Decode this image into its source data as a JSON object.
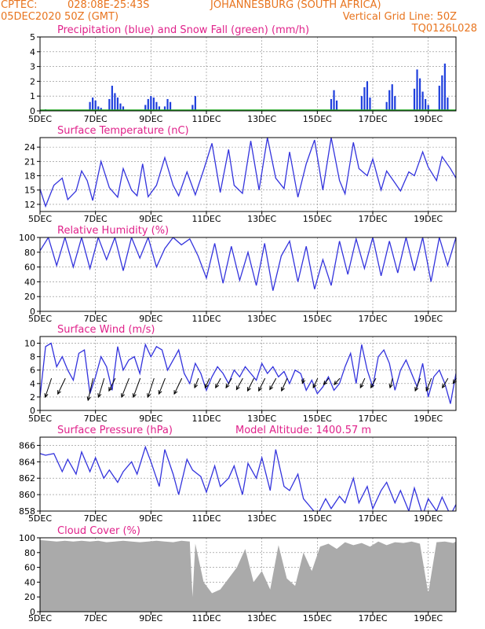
{
  "header": {
    "source": "CPTEC:",
    "coords": "028:08E-25:43S",
    "location": "JOHANNESBURG (SOUTH AFRICA)",
    "run": "05DEC2020 50Z (GMT)",
    "grid_note": "Vertical Grid Line: 50Z",
    "code": "TQ0126L028",
    "color": "#e8741e"
  },
  "colors": {
    "title": "#e0218a",
    "line": "#3333dd",
    "precip": "#1f3fdd",
    "snow": "#22aa22",
    "cloud": "#aaaaaa",
    "arrow": "#000000"
  },
  "x_ticks": [
    "5DEC",
    "7DEC",
    "9DEC",
    "11DEC",
    "13DEC",
    "15DEC",
    "17DEC",
    "19DEC"
  ],
  "chart_data": [
    {
      "id": "precip",
      "type": "bar",
      "title": "Precipitation (blue) and Snow Fall (green) (mm/h)",
      "ylim": [
        0,
        5
      ],
      "yticks": [
        0,
        1,
        2,
        3,
        4,
        5
      ],
      "x": [
        5.2,
        6.8,
        6.9,
        7.0,
        7.1,
        7.2,
        7.5,
        7.6,
        7.7,
        7.8,
        7.9,
        8.0,
        8.8,
        8.9,
        9.0,
        9.1,
        9.2,
        9.3,
        9.5,
        9.6,
        9.7,
        10.5,
        10.6,
        15.5,
        15.6,
        15.7,
        16.6,
        16.7,
        16.8,
        16.9,
        17.5,
        17.6,
        17.7,
        17.8,
        18.5,
        18.6,
        18.7,
        18.8,
        18.9,
        19.0,
        19.4,
        19.5,
        19.6,
        19.7
      ],
      "series": [
        {
          "values": [
            0.1,
            0.6,
            0.9,
            0.7,
            0.3,
            0.2,
            0.8,
            1.7,
            1.2,
            0.9,
            0.5,
            0.3,
            0.4,
            0.8,
            1.0,
            0.9,
            0.6,
            0.3,
            0.3,
            0.8,
            0.6,
            0.4,
            1.0,
            0.8,
            1.4,
            0.7,
            1.0,
            1.6,
            2.0,
            0.9,
            0.6,
            1.4,
            1.8,
            1.0,
            1.5,
            2.8,
            2.2,
            1.3,
            0.8,
            0.4,
            1.7,
            2.4,
            3.2,
            0.9
          ]
        }
      ]
    },
    {
      "id": "temp",
      "type": "line",
      "title": "Surface Temperature (nC)",
      "ylim": [
        10.5,
        26
      ],
      "yticks": [
        12,
        15,
        18,
        21,
        24
      ],
      "x": [
        5.0,
        5.2,
        5.5,
        5.8,
        6.0,
        6.3,
        6.5,
        6.7,
        6.9,
        7.2,
        7.5,
        7.8,
        8.0,
        8.3,
        8.5,
        8.7,
        8.9,
        9.2,
        9.5,
        9.8,
        10.0,
        10.3,
        10.6,
        10.9,
        11.2,
        11.5,
        11.8,
        12.0,
        12.3,
        12.6,
        12.9,
        13.2,
        13.5,
        13.8,
        14.0,
        14.3,
        14.6,
        14.9,
        15.2,
        15.5,
        15.8,
        16.0,
        16.3,
        16.5,
        16.8,
        17.0,
        17.3,
        17.5,
        17.8,
        18.0,
        18.3,
        18.5,
        18.8,
        19.0,
        19.3,
        19.5,
        19.8,
        20.0
      ],
      "series": [
        {
          "values": [
            15.2,
            11.6,
            16.0,
            17.5,
            13.0,
            14.8,
            19.0,
            17.0,
            12.8,
            21.0,
            15.5,
            13.5,
            19.5,
            15.0,
            13.8,
            20.5,
            13.6,
            16.0,
            21.8,
            16.0,
            13.8,
            18.8,
            14.0,
            19.2,
            24.8,
            14.5,
            23.5,
            16.0,
            14.3,
            25.3,
            15.0,
            26.0,
            17.5,
            15.3,
            23.0,
            13.5,
            20.5,
            25.5,
            15.0,
            26.0,
            17.0,
            14.2,
            25.0,
            19.5,
            18.0,
            21.5,
            15.0,
            19.0,
            16.5,
            14.8,
            18.8,
            18.0,
            23.0,
            19.8,
            17.0,
            22.0,
            19.5,
            17.5
          ]
        }
      ]
    },
    {
      "id": "rh",
      "type": "line",
      "title": "Relative Humidity (%)",
      "ylim": [
        0,
        100
      ],
      "yticks": [
        0,
        20,
        40,
        60,
        80,
        100
      ],
      "x": [
        5.0,
        5.3,
        5.6,
        5.9,
        6.2,
        6.5,
        6.8,
        7.1,
        7.4,
        7.7,
        8.0,
        8.3,
        8.6,
        8.9,
        9.2,
        9.5,
        9.8,
        10.1,
        10.4,
        10.7,
        11.0,
        11.3,
        11.6,
        11.9,
        12.2,
        12.5,
        12.8,
        13.1,
        13.4,
        13.7,
        14.0,
        14.3,
        14.6,
        14.9,
        15.2,
        15.5,
        15.8,
        16.1,
        16.4,
        16.7,
        17.0,
        17.3,
        17.6,
        17.9,
        18.2,
        18.5,
        18.8,
        19.1,
        19.4,
        19.7,
        20.0
      ],
      "series": [
        {
          "values": [
            82,
            100,
            62,
            100,
            60,
            100,
            58,
            100,
            70,
            100,
            55,
            100,
            72,
            100,
            60,
            85,
            100,
            90,
            98,
            75,
            45,
            92,
            38,
            88,
            42,
            80,
            35,
            92,
            28,
            75,
            95,
            40,
            88,
            30,
            70,
            35,
            95,
            50,
            98,
            58,
            100,
            48,
            95,
            52,
            100,
            55,
            100,
            40,
            100,
            62,
            100
          ]
        }
      ]
    },
    {
      "id": "wind",
      "type": "line",
      "title": "Surface Wind (m/s)",
      "ylim": [
        0,
        11
      ],
      "yticks": [
        0,
        2,
        4,
        6,
        8,
        10
      ],
      "x": [
        5.0,
        5.2,
        5.4,
        5.6,
        5.8,
        6.0,
        6.2,
        6.4,
        6.6,
        6.8,
        7.0,
        7.2,
        7.4,
        7.6,
        7.8,
        8.0,
        8.2,
        8.4,
        8.6,
        8.8,
        9.0,
        9.2,
        9.4,
        9.6,
        9.8,
        10.0,
        10.2,
        10.4,
        10.6,
        10.8,
        11.0,
        11.2,
        11.4,
        11.6,
        11.8,
        12.0,
        12.2,
        12.4,
        12.6,
        12.8,
        13.0,
        13.2,
        13.4,
        13.6,
        13.8,
        14.0,
        14.2,
        14.4,
        14.6,
        14.8,
        15.0,
        15.2,
        15.4,
        15.6,
        15.8,
        16.0,
        16.2,
        16.4,
        16.6,
        16.8,
        17.0,
        17.2,
        17.4,
        17.6,
        17.8,
        18.0,
        18.2,
        18.4,
        18.6,
        18.8,
        19.0,
        19.2,
        19.4,
        19.6,
        19.8,
        20.0
      ],
      "series": [
        {
          "values": [
            2.0,
            9.5,
            10.0,
            6.5,
            8.0,
            6.0,
            4.5,
            8.5,
            9.0,
            2.5,
            5.0,
            8.0,
            6.5,
            3.0,
            9.5,
            6.0,
            7.5,
            8.0,
            5.5,
            9.8,
            8.0,
            9.5,
            9.0,
            6.0,
            7.5,
            9.0,
            5.5,
            4.0,
            7.0,
            5.5,
            3.0,
            5.0,
            6.5,
            5.5,
            4.0,
            6.0,
            5.0,
            6.5,
            5.5,
            4.5,
            7.0,
            5.5,
            6.5,
            5.0,
            5.8,
            4.0,
            6.0,
            5.5,
            3.0,
            4.5,
            2.5,
            3.5,
            5.0,
            3.0,
            4.0,
            6.5,
            8.5,
            4.0,
            9.8,
            6.0,
            3.5,
            8.0,
            9.0,
            7.0,
            3.0,
            6.0,
            7.5,
            5.5,
            3.5,
            7.0,
            2.0,
            5.0,
            6.0,
            4.0,
            1.0,
            5.5
          ]
        }
      ],
      "arrows": {
        "x": [
          5.3,
          5.8,
          6.8,
          7.2,
          7.6,
          8.1,
          8.5,
          9.0,
          9.4,
          10.0,
          10.6,
          11.0,
          11.4,
          11.8,
          12.2,
          12.6,
          13.0,
          13.4,
          13.8,
          14.4,
          14.9,
          15.3,
          15.7,
          16.6,
          17.0,
          17.6,
          18.6,
          19.0,
          19.6,
          19.9
        ],
        "u": [
          -1.0,
          -1.2,
          -0.8,
          -0.9,
          -1.0,
          -1.2,
          -1.1,
          -1.0,
          -1.0,
          -1.2,
          -0.6,
          -0.7,
          -0.8,
          -0.9,
          -1.0,
          -1.0,
          -1.0,
          -1.0,
          -0.9,
          -0.2,
          -0.7,
          -0.8,
          -0.9,
          -0.7,
          -0.8,
          -0.4,
          -0.8,
          -0.8,
          -0.9,
          -0.5
        ],
        "v": [
          -3.0,
          -2.5,
          -3.5,
          -3.0,
          -2.0,
          -3.0,
          -3.0,
          -3.0,
          -2.5,
          -2.5,
          -1.5,
          -1.5,
          -1.5,
          -1.5,
          -1.8,
          -2.0,
          -2.0,
          -1.8,
          -2.0,
          -0.8,
          -1.5,
          -1.0,
          -1.0,
          -1.5,
          -1.5,
          -1.5,
          -2.0,
          -2.0,
          -1.5,
          -0.8
        ]
      }
    },
    {
      "id": "pres",
      "type": "line",
      "title": "Surface Pressure (hPa)",
      "extra_label": "Model Altitude: 1400.57 m",
      "ylim": [
        858,
        867
      ],
      "yticks": [
        858,
        860,
        862,
        864,
        866
      ],
      "x": [
        5.0,
        5.2,
        5.5,
        5.8,
        6.0,
        6.3,
        6.5,
        6.8,
        7.0,
        7.3,
        7.5,
        7.8,
        8.0,
        8.3,
        8.5,
        8.8,
        9.0,
        9.3,
        9.5,
        9.8,
        10.0,
        10.3,
        10.5,
        10.8,
        11.0,
        11.3,
        11.5,
        11.8,
        12.0,
        12.3,
        12.5,
        12.8,
        13.0,
        13.3,
        13.5,
        13.8,
        14.0,
        14.3,
        14.5,
        14.8,
        15.0,
        15.3,
        15.5,
        15.8,
        16.0,
        16.3,
        16.5,
        16.8,
        17.0,
        17.3,
        17.5,
        17.8,
        18.0,
        18.3,
        18.5,
        18.8,
        19.0,
        19.3,
        19.5,
        19.8,
        20.0
      ],
      "series": [
        {
          "values": [
            865.0,
            864.8,
            865.0,
            862.8,
            864.3,
            862.5,
            865.2,
            862.8,
            864.5,
            862.0,
            863.0,
            861.5,
            862.8,
            864.0,
            862.5,
            865.8,
            864.0,
            861.0,
            865.5,
            862.5,
            860.0,
            864.3,
            863.0,
            862.2,
            860.3,
            863.5,
            861.0,
            862.0,
            863.5,
            860.0,
            863.8,
            862.0,
            864.5,
            860.5,
            865.5,
            861.0,
            860.5,
            862.5,
            859.5,
            858.3,
            857.5,
            859.5,
            858.3,
            859.8,
            859.0,
            862.0,
            859.0,
            861.0,
            858.3,
            860.5,
            861.5,
            859.0,
            860.5,
            858.0,
            860.8,
            857.5,
            859.5,
            858.0,
            859.7,
            857.5,
            858.8
          ]
        }
      ]
    },
    {
      "id": "cloud",
      "type": "area",
      "title": "Cloud Cover (%)",
      "ylim": [
        0,
        100
      ],
      "yticks": [
        0,
        20,
        40,
        60,
        80,
        100
      ],
      "x": [
        5.0,
        5.3,
        5.6,
        5.9,
        6.2,
        6.5,
        6.8,
        7.1,
        7.4,
        7.7,
        8.0,
        8.3,
        8.6,
        8.9,
        9.2,
        9.5,
        9.8,
        10.1,
        10.4,
        10.5,
        10.6,
        10.9,
        11.2,
        11.5,
        11.8,
        12.1,
        12.4,
        12.7,
        13.0,
        13.3,
        13.6,
        13.9,
        14.2,
        14.5,
        14.8,
        15.1,
        15.4,
        15.7,
        16.0,
        16.3,
        16.6,
        16.9,
        17.2,
        17.5,
        17.8,
        18.1,
        18.4,
        18.7,
        19.0,
        19.3,
        19.6,
        19.9,
        20.0
      ],
      "series": [
        {
          "values": [
            97,
            96,
            95,
            96,
            95,
            96,
            95,
            96,
            94,
            95,
            96,
            95,
            94,
            95,
            96,
            95,
            94,
            96,
            95,
            20,
            92,
            40,
            25,
            30,
            45,
            60,
            85,
            40,
            55,
            30,
            90,
            45,
            35,
            80,
            55,
            88,
            92,
            85,
            94,
            90,
            93,
            88,
            95,
            90,
            94,
            93,
            95,
            92,
            25,
            94,
            95,
            93,
            95
          ]
        }
      ]
    }
  ]
}
